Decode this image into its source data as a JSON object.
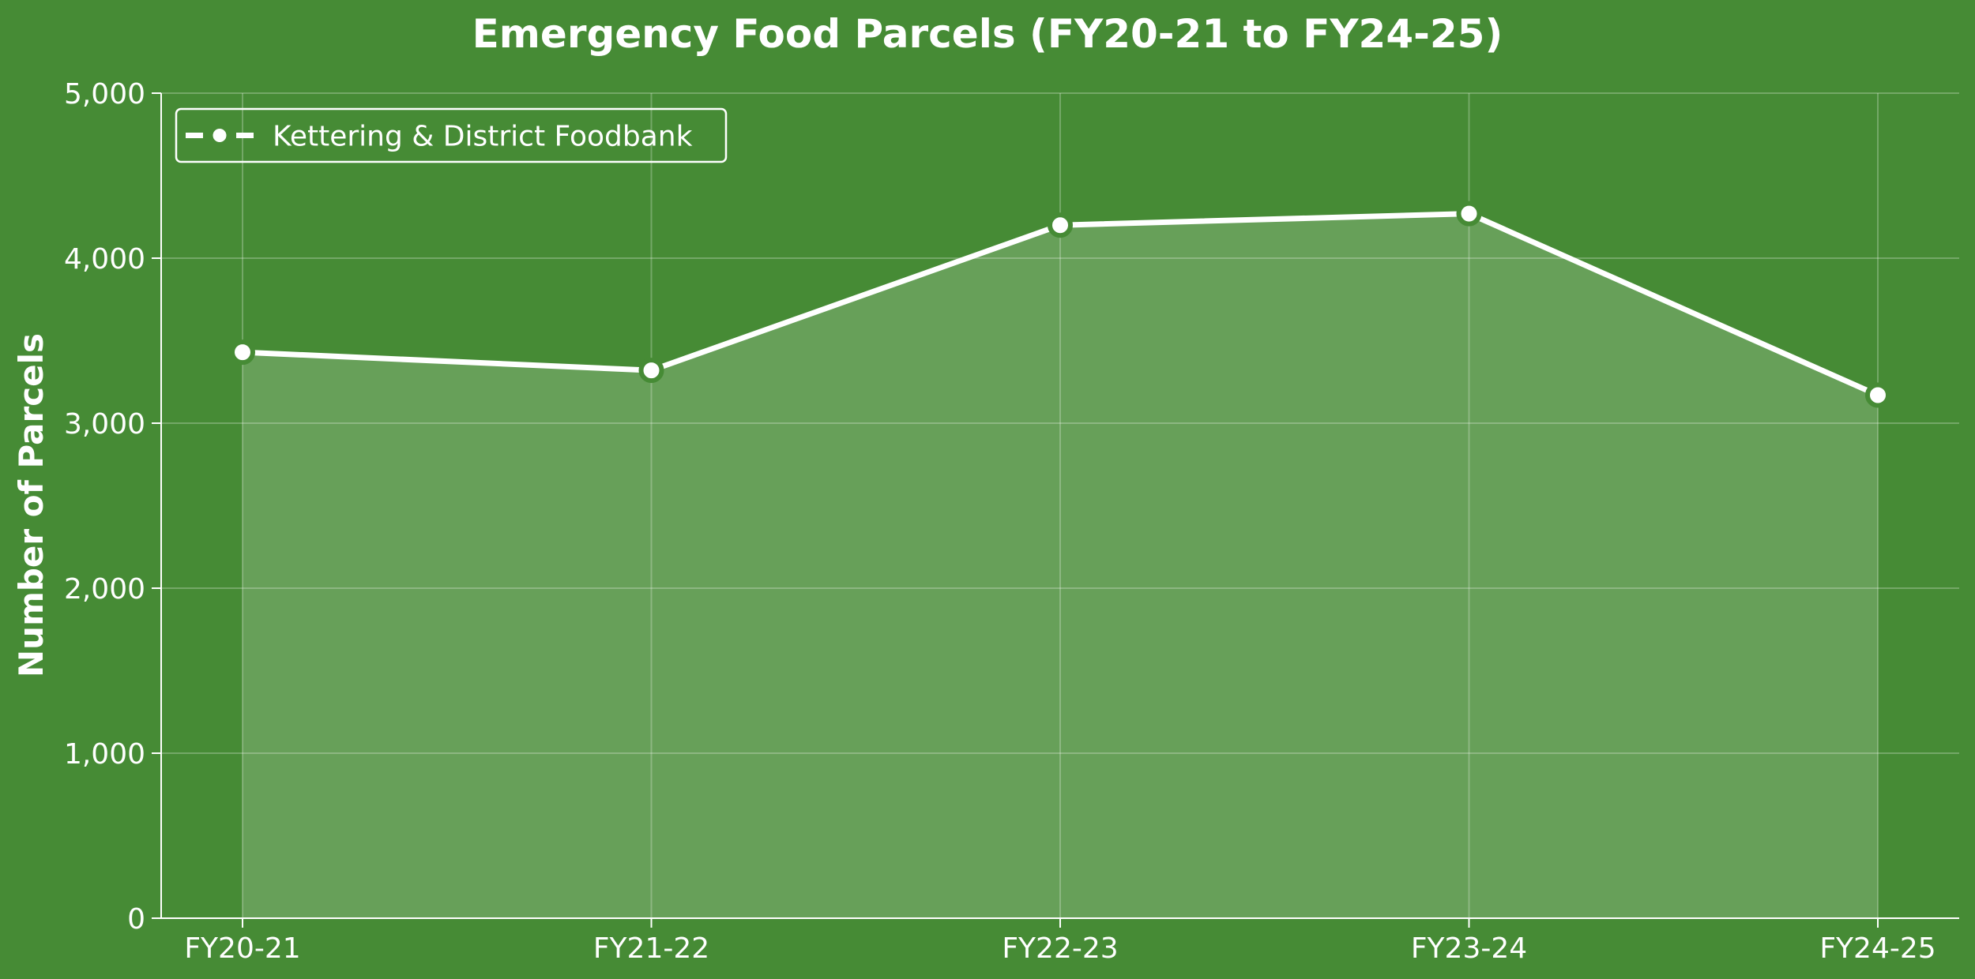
{
  "colors": {
    "background": "#468b35",
    "line": "#ffffff",
    "fill": "#ffffff",
    "grid": "#ffffff",
    "marker_edge": "#468b35"
  },
  "chart_data": {
    "type": "area",
    "title": "Emergency Food Parcels (FY20-21 to FY24-25)",
    "xlabel": "",
    "ylabel": "Number of Parcels",
    "categories": [
      "FY20-21",
      "FY21-22",
      "FY22-23",
      "FY23-24",
      "FY24-25"
    ],
    "series": [
      {
        "name": "Kettering & District Foodbank",
        "values": [
          3430,
          3320,
          4200,
          4270,
          3170
        ]
      }
    ],
    "ylim": [
      0,
      5000
    ],
    "yticks": [
      0,
      1000,
      2000,
      3000,
      4000,
      5000
    ],
    "ytick_labels": [
      "0",
      "1,000",
      "2,000",
      "3,000",
      "4,000",
      "5,000"
    ],
    "grid": true,
    "legend_position": "top-left"
  }
}
